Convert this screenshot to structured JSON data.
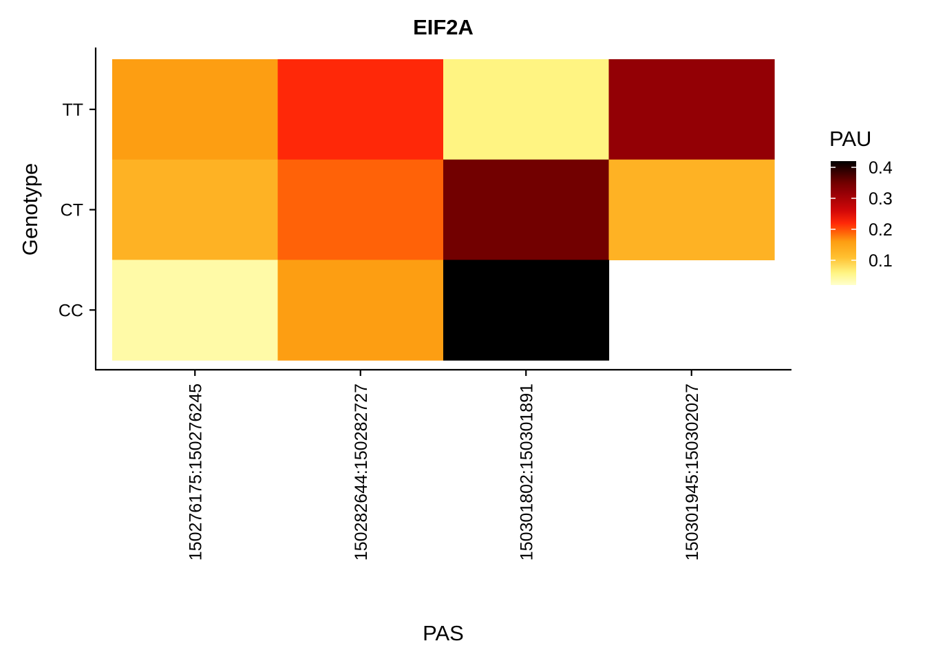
{
  "chart_data": {
    "type": "heatmap",
    "title": "EIF2A",
    "xlabel": "PAS",
    "ylabel": "Genotype",
    "x_categories": [
      "150276175:150276245",
      "150282644:150282727",
      "150301802:150301891",
      "150301945:150302027"
    ],
    "y_categories": [
      "TT",
      "CT",
      "CC"
    ],
    "cells": [
      {
        "x": "150276175:150276245",
        "y": "TT",
        "value": 0.16
      },
      {
        "x": "150282644:150282727",
        "y": "TT",
        "value": 0.22
      },
      {
        "x": "150301802:150301891",
        "y": "TT",
        "value": 0.06
      },
      {
        "x": "150301945:150302027",
        "y": "TT",
        "value": 0.32
      },
      {
        "x": "150276175:150276245",
        "y": "CT",
        "value": 0.13
      },
      {
        "x": "150282644:150282727",
        "y": "CT",
        "value": 0.19
      },
      {
        "x": "150301802:150301891",
        "y": "CT",
        "value": 0.35
      },
      {
        "x": "150301945:150302027",
        "y": "CT",
        "value": 0.13
      },
      {
        "x": "150276175:150276245",
        "y": "CC",
        "value": 0.04
      },
      {
        "x": "150282644:150282727",
        "y": "CC",
        "value": 0.16
      },
      {
        "x": "150301802:150301891",
        "y": "CC",
        "value": 0.42
      }
    ],
    "legend": {
      "title": "PAU",
      "ticks": [
        0.1,
        0.2,
        0.3,
        0.4
      ],
      "tick_labels": [
        "0.1",
        "0.2",
        "0.3",
        "0.4"
      ],
      "range": [
        0.02,
        0.42
      ],
      "placement": "right"
    },
    "colorscale": [
      {
        "v": 0.02,
        "color": "#ffffcc"
      },
      {
        "v": 0.06,
        "color": "#fff482"
      },
      {
        "v": 0.11,
        "color": "#ffc030"
      },
      {
        "v": 0.16,
        "color": "#fd9e12"
      },
      {
        "v": 0.19,
        "color": "#ff6208"
      },
      {
        "v": 0.22,
        "color": "#ff2808"
      },
      {
        "v": 0.26,
        "color": "#d20808"
      },
      {
        "v": 0.32,
        "color": "#930005"
      },
      {
        "v": 0.35,
        "color": "#720000"
      },
      {
        "v": 0.42,
        "color": "#000000"
      }
    ],
    "grid": false
  }
}
